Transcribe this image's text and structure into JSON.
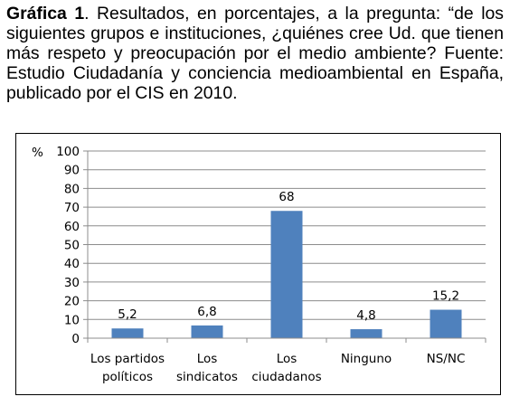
{
  "caption": {
    "label": "Gráfica 1",
    "text": ". Resultados, en porcentajes, a la pregunta: “de los siguientes grupos e instituciones, ¿quiénes cree Ud. que tienen más respeto y preocupación por el medio ambiente? Fuente: Estudio Ciudadanía y conciencia medioambiental en España, publicado por el CIS en 2010."
  },
  "chart_data": {
    "type": "bar",
    "ylabel": "%",
    "ylim": [
      0,
      100
    ],
    "yticks": [
      "0",
      "10",
      "20",
      "30",
      "40",
      "50",
      "60",
      "70",
      "80",
      "90",
      "100"
    ],
    "categories": [
      [
        "Los partidos",
        "políticos"
      ],
      [
        "Los",
        "sindicatos"
      ],
      [
        "Los",
        "ciudadanos"
      ],
      [
        "Ninguno"
      ],
      [
        "NS/NC"
      ]
    ],
    "values": [
      5.2,
      6.8,
      68,
      4.8,
      15.2
    ],
    "value_labels": [
      "5,2",
      "6,8",
      "68",
      "4,8",
      "15,2"
    ],
    "grid": true,
    "bar_color": "#4f81bd"
  }
}
